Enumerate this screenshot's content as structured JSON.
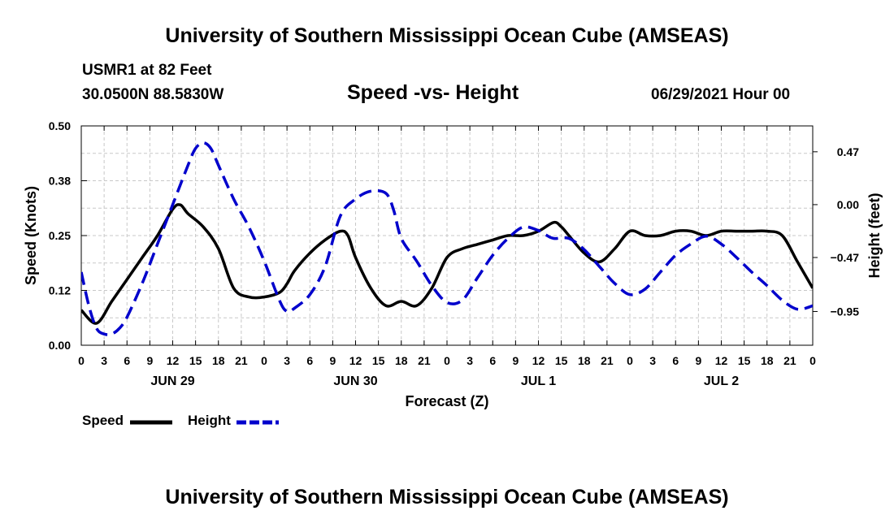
{
  "header": {
    "title": "University of Southern Mississippi Ocean Cube (AMSEAS)",
    "station": "USMR1 at 82 Feet",
    "coords": "30.0500N  88.5830W",
    "plot_title": "Speed -vs- Height",
    "date": "06/29/2021 Hour 00"
  },
  "footer": {
    "title": "University of Southern Mississippi Ocean Cube (AMSEAS)"
  },
  "chart_data": {
    "type": "line",
    "title": "Speed -vs- Height",
    "xlabel": "Forecast (Z)",
    "ylabel": "Speed (Knots)",
    "y2label": "Height (feet)",
    "xlim": [
      0,
      96
    ],
    "ylim": [
      0,
      0.5
    ],
    "y2lim": [
      -1.25,
      0.7
    ],
    "grid": true,
    "x_ticks": [
      0,
      3,
      6,
      9,
      12,
      15,
      18,
      21,
      24,
      27,
      30,
      33,
      36,
      39,
      42,
      45,
      48,
      51,
      54,
      57,
      60,
      63,
      66,
      69,
      72,
      75,
      78,
      81,
      84,
      87,
      90,
      93,
      96
    ],
    "x_tick_labels": [
      "0",
      "3",
      "6",
      "9",
      "12",
      "15",
      "18",
      "21",
      "0",
      "3",
      "6",
      "9",
      "12",
      "15",
      "18",
      "21",
      "0",
      "3",
      "6",
      "9",
      "12",
      "15",
      "18",
      "21",
      "0",
      "3",
      "6",
      "9",
      "12",
      "15",
      "18",
      "21",
      "0"
    ],
    "day_labels": [
      {
        "x": 12,
        "label": "JUN 29"
      },
      {
        "x": 36,
        "label": "JUN 30"
      },
      {
        "x": 60,
        "label": "JUL 1"
      },
      {
        "x": 84,
        "label": "JUL 2"
      }
    ],
    "y_ticks": [
      0,
      0.125,
      0.25,
      0.375,
      0.5
    ],
    "y_tick_labels": [
      "0.00",
      "0.12",
      "0.25",
      "0.38",
      "0.50"
    ],
    "y2_ticks": [
      -0.95,
      -0.47,
      0.0,
      0.47
    ],
    "y2_tick_labels": [
      "−0.95",
      "−0.47",
      "0.00",
      "0.47"
    ],
    "legend": [
      {
        "name": "Speed",
        "color": "#000000",
        "dash": "solid"
      },
      {
        "name": "Height",
        "color": "#0000cc",
        "dash": "dashed"
      }
    ],
    "series": [
      {
        "name": "Speed",
        "axis": "left",
        "color": "#000000",
        "x": [
          0,
          2,
          4,
          6,
          8,
          10,
          12,
          13,
          14,
          16,
          18,
          20,
          22,
          24,
          26,
          27,
          28,
          30,
          32,
          34,
          35,
          36,
          38,
          40,
          42,
          44,
          46,
          48,
          50,
          52,
          54,
          56,
          58,
          60,
          62,
          63,
          64,
          66,
          68,
          70,
          72,
          74,
          76,
          78,
          80,
          82,
          84,
          86,
          88,
          90,
          92,
          94,
          96
        ],
        "y": [
          0.08,
          0.05,
          0.1,
          0.15,
          0.2,
          0.25,
          0.31,
          0.32,
          0.3,
          0.27,
          0.22,
          0.13,
          0.11,
          0.11,
          0.12,
          0.14,
          0.17,
          0.21,
          0.24,
          0.26,
          0.25,
          0.2,
          0.13,
          0.09,
          0.1,
          0.09,
          0.13,
          0.2,
          0.22,
          0.23,
          0.24,
          0.25,
          0.25,
          0.26,
          0.28,
          0.27,
          0.25,
          0.21,
          0.19,
          0.22,
          0.26,
          0.25,
          0.25,
          0.26,
          0.26,
          0.25,
          0.26,
          0.26,
          0.26,
          0.26,
          0.25,
          0.19,
          0.13
        ]
      },
      {
        "name": "Height",
        "axis": "right",
        "color": "#0000cc",
        "x": [
          0,
          1,
          2,
          3,
          4,
          5,
          6,
          8,
          10,
          12,
          14,
          15,
          16,
          17,
          18,
          20,
          22,
          24,
          26,
          27,
          28,
          30,
          32,
          34,
          36,
          38,
          40,
          41,
          42,
          44,
          46,
          48,
          50,
          52,
          54,
          56,
          58,
          60,
          61,
          62,
          64,
          66,
          68,
          70,
          72,
          74,
          76,
          78,
          80,
          82,
          84,
          86,
          88,
          90,
          92,
          94,
          96
        ],
        "y": [
          -0.6,
          -0.9,
          -1.1,
          -1.15,
          -1.15,
          -1.1,
          -1.0,
          -0.7,
          -0.35,
          0.0,
          0.35,
          0.5,
          0.55,
          0.5,
          0.35,
          0.05,
          -0.2,
          -0.5,
          -0.85,
          -0.95,
          -0.92,
          -0.8,
          -0.55,
          -0.1,
          0.05,
          0.12,
          0.1,
          -0.05,
          -0.3,
          -0.5,
          -0.72,
          -0.87,
          -0.85,
          -0.65,
          -0.45,
          -0.3,
          -0.2,
          -0.23,
          -0.27,
          -0.3,
          -0.3,
          -0.4,
          -0.55,
          -0.7,
          -0.8,
          -0.75,
          -0.6,
          -0.45,
          -0.35,
          -0.28,
          -0.35,
          -0.47,
          -0.6,
          -0.72,
          -0.85,
          -0.93,
          -0.9
        ]
      }
    ]
  }
}
